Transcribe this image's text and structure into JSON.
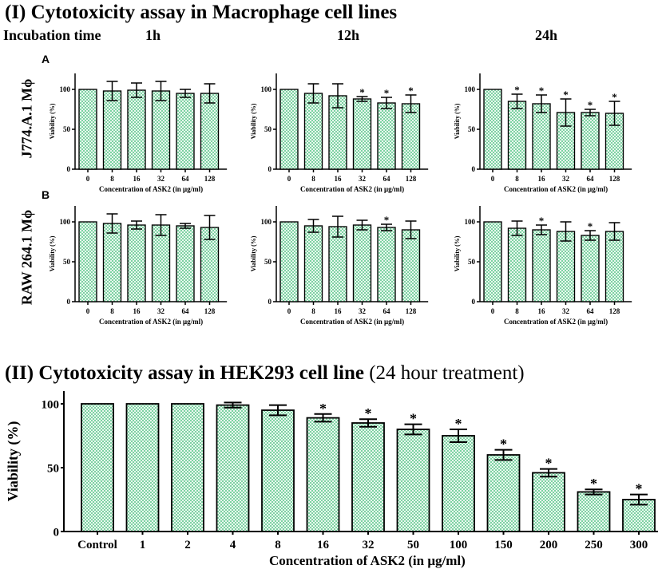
{
  "section1": {
    "title": "(I) Cytotoxicity assay in Macrophage cell lines",
    "incubation_label": "Incubation time",
    "times": [
      "1h",
      "12h",
      "24h"
    ],
    "rows": [
      {
        "tag": "A",
        "label": "J774.A.1 Mϕ"
      },
      {
        "tag": "B",
        "label": "RAW 264.1 Mϕ"
      }
    ]
  },
  "section2": {
    "title": "(II) Cytotoxicity assay in HEK293 cell line",
    "subtitle": " (24 hour treatment)"
  },
  "colors": {
    "bar_fill": "#7ed2a3",
    "bar_stroke": "#000000",
    "pattern_light": "#e8f7ee"
  },
  "chart_data": [
    {
      "id": "A-1h",
      "type": "bar",
      "categories": [
        "0",
        "8",
        "16",
        "32",
        "64",
        "128"
      ],
      "values": [
        100,
        98,
        99,
        98,
        95,
        95
      ],
      "errors": [
        0,
        12,
        9,
        12,
        5,
        12
      ],
      "significant": [
        false,
        false,
        false,
        false,
        false,
        false
      ],
      "ylabel": "Viability (%)",
      "xlabel": "Concentration of ASK2 (in μg/ml)",
      "ylim": [
        0,
        120
      ],
      "yticks": [
        0,
        50,
        100
      ]
    },
    {
      "id": "A-12h",
      "type": "bar",
      "categories": [
        "0",
        "8",
        "16",
        "32",
        "64",
        "128"
      ],
      "values": [
        100,
        95,
        92,
        88,
        83,
        82
      ],
      "errors": [
        0,
        12,
        15,
        3,
        7,
        11
      ],
      "significant": [
        false,
        false,
        false,
        true,
        true,
        true
      ],
      "ylabel": "Viability (%)",
      "xlabel": "Concentration of ASK2 (in μg/ml)",
      "ylim": [
        0,
        120
      ],
      "yticks": [
        0,
        50,
        100
      ]
    },
    {
      "id": "A-24h",
      "type": "bar",
      "categories": [
        "0",
        "8",
        "16",
        "32",
        "64",
        "128"
      ],
      "values": [
        100,
        85,
        82,
        71,
        71,
        70
      ],
      "errors": [
        0,
        9,
        11,
        17,
        4,
        15
      ],
      "significant": [
        false,
        true,
        true,
        true,
        true,
        true
      ],
      "ylabel": "Viability (%)",
      "xlabel": "Concentration of ASK2 (in μg/ml)",
      "ylim": [
        0,
        120
      ],
      "yticks": [
        0,
        50,
        100
      ]
    },
    {
      "id": "B-1h",
      "type": "bar",
      "categories": [
        "0",
        "8",
        "16",
        "32",
        "64",
        "128"
      ],
      "values": [
        100,
        98,
        96,
        96,
        95,
        93
      ],
      "errors": [
        0,
        12,
        5,
        13,
        3,
        15
      ],
      "significant": [
        false,
        false,
        false,
        false,
        false,
        false
      ],
      "ylabel": "Viability (%)",
      "xlabel": "Concentration of ASK2 (in μg/ml)",
      "ylim": [
        0,
        120
      ],
      "yticks": [
        0,
        50,
        100
      ]
    },
    {
      "id": "B-12h",
      "type": "bar",
      "categories": [
        "0",
        "8",
        "16",
        "32",
        "64",
        "128"
      ],
      "values": [
        100,
        95,
        94,
        96,
        93,
        90
      ],
      "errors": [
        0,
        8,
        13,
        6,
        4,
        11
      ],
      "significant": [
        false,
        false,
        false,
        false,
        true,
        false
      ],
      "ylabel": "Viability (%)",
      "xlabel": "Concentration of ASK2 (in μg/ml)",
      "ylim": [
        0,
        120
      ],
      "yticks": [
        0,
        50,
        100
      ]
    },
    {
      "id": "B-24h",
      "type": "bar",
      "categories": [
        "0",
        "8",
        "16",
        "32",
        "64",
        "128"
      ],
      "values": [
        100,
        92,
        90,
        88,
        83,
        88
      ],
      "errors": [
        0,
        9,
        6,
        12,
        6,
        11
      ],
      "significant": [
        false,
        false,
        true,
        false,
        true,
        false
      ],
      "ylabel": "Viability (%)",
      "xlabel": "Concentration of ASK2 (in μg/ml)",
      "ylim": [
        0,
        120
      ],
      "yticks": [
        0,
        50,
        100
      ]
    },
    {
      "id": "HEK293",
      "type": "bar",
      "categories": [
        "Control",
        "1",
        "2",
        "4",
        "8",
        "16",
        "32",
        "50",
        "100",
        "150",
        "200",
        "250",
        "300"
      ],
      "values": [
        100,
        100,
        100,
        99,
        95,
        89,
        85,
        80,
        75,
        60,
        46,
        31,
        25
      ],
      "errors": [
        0,
        0,
        0,
        2,
        4,
        3,
        3,
        4,
        5,
        4,
        3,
        2,
        4
      ],
      "significant": [
        false,
        false,
        false,
        false,
        false,
        true,
        true,
        true,
        true,
        true,
        true,
        true,
        true
      ],
      "ylabel": "Viability (%)",
      "xlabel": "Concentration of ASK2 (in μg/ml)",
      "ylim": [
        0,
        110
      ],
      "yticks": [
        0,
        50,
        100
      ]
    }
  ]
}
